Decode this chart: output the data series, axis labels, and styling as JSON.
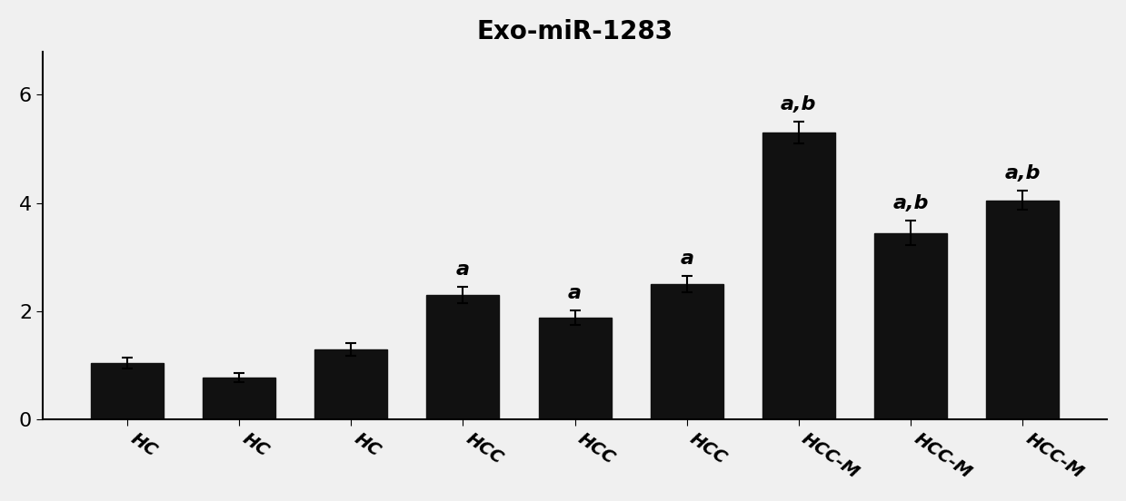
{
  "title": "Exo-miR-1283",
  "categories": [
    "HC",
    "HC",
    "HC",
    "HCC",
    "HCC",
    "HCC",
    "HCC-M",
    "HCC-M",
    "HCC-M"
  ],
  "values": [
    1.05,
    0.78,
    1.3,
    2.3,
    1.88,
    2.5,
    5.3,
    3.45,
    4.05
  ],
  "errors": [
    0.1,
    0.08,
    0.12,
    0.15,
    0.13,
    0.15,
    0.2,
    0.22,
    0.18
  ],
  "annotations": [
    "",
    "",
    "",
    "a",
    "a",
    "a",
    "a,b",
    "a,b",
    "a,b"
  ],
  "bar_color": "#111111",
  "ylim": [
    0,
    6.8
  ],
  "yticks": [
    0,
    2,
    4,
    6
  ],
  "title_fontsize": 20,
  "tick_label_fontsize": 14,
  "annotation_fontsize": 16,
  "bar_width": 0.65,
  "background_color": "#f0f0f0",
  "figure_background": "#f0f0f0"
}
